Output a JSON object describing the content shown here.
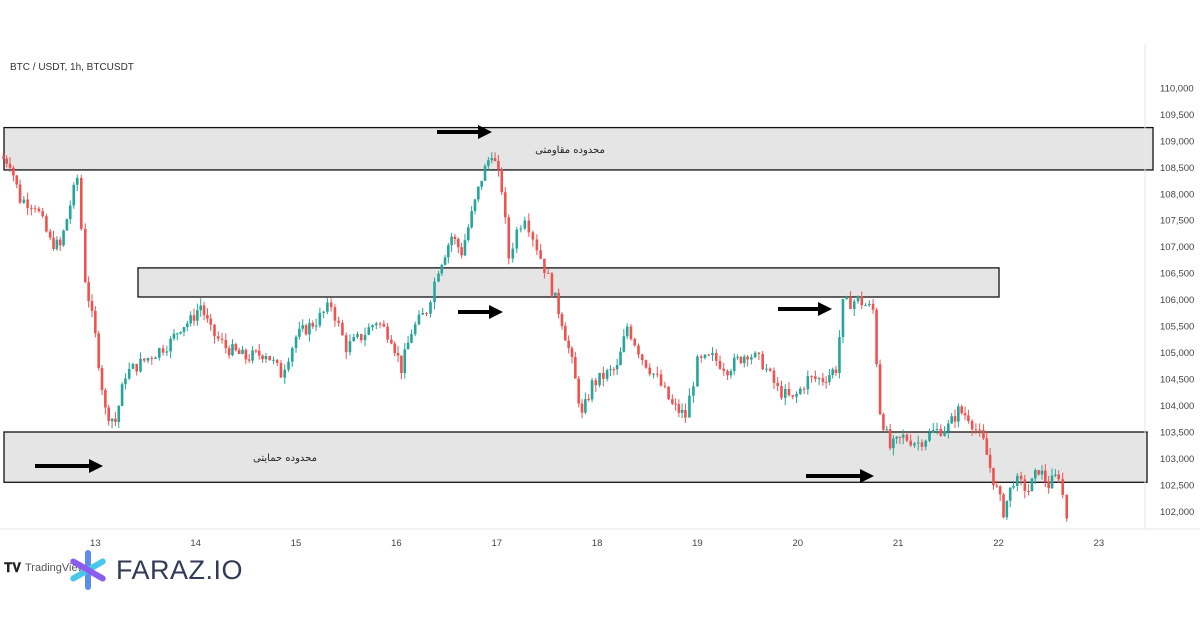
{
  "header": {
    "symbol": "BTC / USDT, 1h, BTCUSDT"
  },
  "branding": {
    "logo_text": "FARAZ.IO",
    "tradingview_text": "TradingView"
  },
  "zones": {
    "resistance": {
      "label": "محدوده مقاومتی",
      "top": 109250,
      "bottom": 108450
    },
    "middle": {
      "label": "",
      "top": 106600,
      "bottom": 106050
    },
    "support": {
      "label": "محدوده حمایتی",
      "top": 103500,
      "bottom": 102550
    }
  },
  "colors": {
    "up": "#26a69a",
    "down": "#ef5350",
    "zone_fill": "#e1e1e1",
    "zone_stroke": "#111111"
  },
  "chart_data": {
    "type": "candlestick",
    "title": "BTC / USDT, 1h, BTCUSDT",
    "ylim": [
      101800,
      110300
    ],
    "xlim": [
      12.05,
      23.45
    ],
    "y_ticks": [
      "110,000",
      "109,500",
      "109,000",
      "108,500",
      "108,000",
      "107,500",
      "107,000",
      "106,500",
      "106,000",
      "105,500",
      "105,000",
      "104,500",
      "104,000",
      "103,500",
      "103,000",
      "102,500",
      "102,000"
    ],
    "y_tick_values": [
      110000,
      109500,
      109000,
      108500,
      108000,
      107500,
      107000,
      106500,
      106000,
      105500,
      105000,
      104500,
      104000,
      103500,
      103000,
      102500,
      102000
    ],
    "x_ticks": [
      "13",
      "14",
      "15",
      "16",
      "17",
      "18",
      "19",
      "20",
      "21",
      "22",
      "23"
    ],
    "x_tick_values": [
      13,
      14,
      15,
      16,
      17,
      18,
      19,
      20,
      21,
      22,
      23
    ],
    "path_points": [
      [
        12.05,
        108700
      ],
      [
        12.15,
        108600
      ],
      [
        12.25,
        107900
      ],
      [
        12.4,
        107800
      ],
      [
        12.55,
        107100
      ],
      [
        12.65,
        107000
      ],
      [
        12.75,
        107800
      ],
      [
        12.82,
        108300
      ],
      [
        12.9,
        106400
      ],
      [
        13.0,
        105300
      ],
      [
        13.1,
        103900
      ],
      [
        13.2,
        103700
      ],
      [
        13.3,
        104600
      ],
      [
        13.45,
        104800
      ],
      [
        13.6,
        105000
      ],
      [
        13.75,
        105200
      ],
      [
        13.85,
        105500
      ],
      [
        13.95,
        105600
      ],
      [
        14.05,
        105900
      ],
      [
        14.15,
        105400
      ],
      [
        14.3,
        105100
      ],
      [
        14.5,
        104900
      ],
      [
        14.7,
        105000
      ],
      [
        14.85,
        104600
      ],
      [
        15.0,
        105300
      ],
      [
        15.2,
        105600
      ],
      [
        15.35,
        105900
      ],
      [
        15.5,
        105100
      ],
      [
        15.65,
        105300
      ],
      [
        15.8,
        105600
      ],
      [
        15.95,
        105300
      ],
      [
        16.05,
        104700
      ],
      [
        16.15,
        105400
      ],
      [
        16.3,
        105800
      ],
      [
        16.42,
        106600
      ],
      [
        16.55,
        107200
      ],
      [
        16.65,
        106900
      ],
      [
        16.75,
        107600
      ],
      [
        16.85,
        108300
      ],
      [
        16.95,
        108800
      ],
      [
        17.05,
        108100
      ],
      [
        17.12,
        106800
      ],
      [
        17.2,
        107300
      ],
      [
        17.28,
        107600
      ],
      [
        17.4,
        107000
      ],
      [
        17.55,
        106200
      ],
      [
        17.65,
        105600
      ],
      [
        17.75,
        104800
      ],
      [
        17.85,
        103800
      ],
      [
        17.95,
        104400
      ],
      [
        18.1,
        104600
      ],
      [
        18.2,
        104700
      ],
      [
        18.3,
        105500
      ],
      [
        18.45,
        104900
      ],
      [
        18.6,
        104500
      ],
      [
        18.75,
        104000
      ],
      [
        18.88,
        103800
      ],
      [
        19.0,
        104800
      ],
      [
        19.15,
        104900
      ],
      [
        19.3,
        104700
      ],
      [
        19.5,
        105000
      ],
      [
        19.65,
        104800
      ],
      [
        19.8,
        104300
      ],
      [
        19.95,
        104100
      ],
      [
        20.1,
        104500
      ],
      [
        20.25,
        104500
      ],
      [
        20.38,
        104700
      ],
      [
        20.45,
        105900
      ],
      [
        20.6,
        106000
      ],
      [
        20.75,
        105800
      ],
      [
        20.82,
        103900
      ],
      [
        20.92,
        103200
      ],
      [
        21.05,
        103400
      ],
      [
        21.2,
        103300
      ],
      [
        21.35,
        103500
      ],
      [
        21.5,
        103600
      ],
      [
        21.6,
        103900
      ],
      [
        21.7,
        103800
      ],
      [
        21.85,
        103300
      ],
      [
        21.95,
        102600
      ],
      [
        22.05,
        102000
      ],
      [
        22.15,
        102600
      ],
      [
        22.3,
        102400
      ],
      [
        22.4,
        102800
      ],
      [
        22.5,
        102500
      ],
      [
        22.6,
        102700
      ],
      [
        22.68,
        101900
      ]
    ]
  }
}
